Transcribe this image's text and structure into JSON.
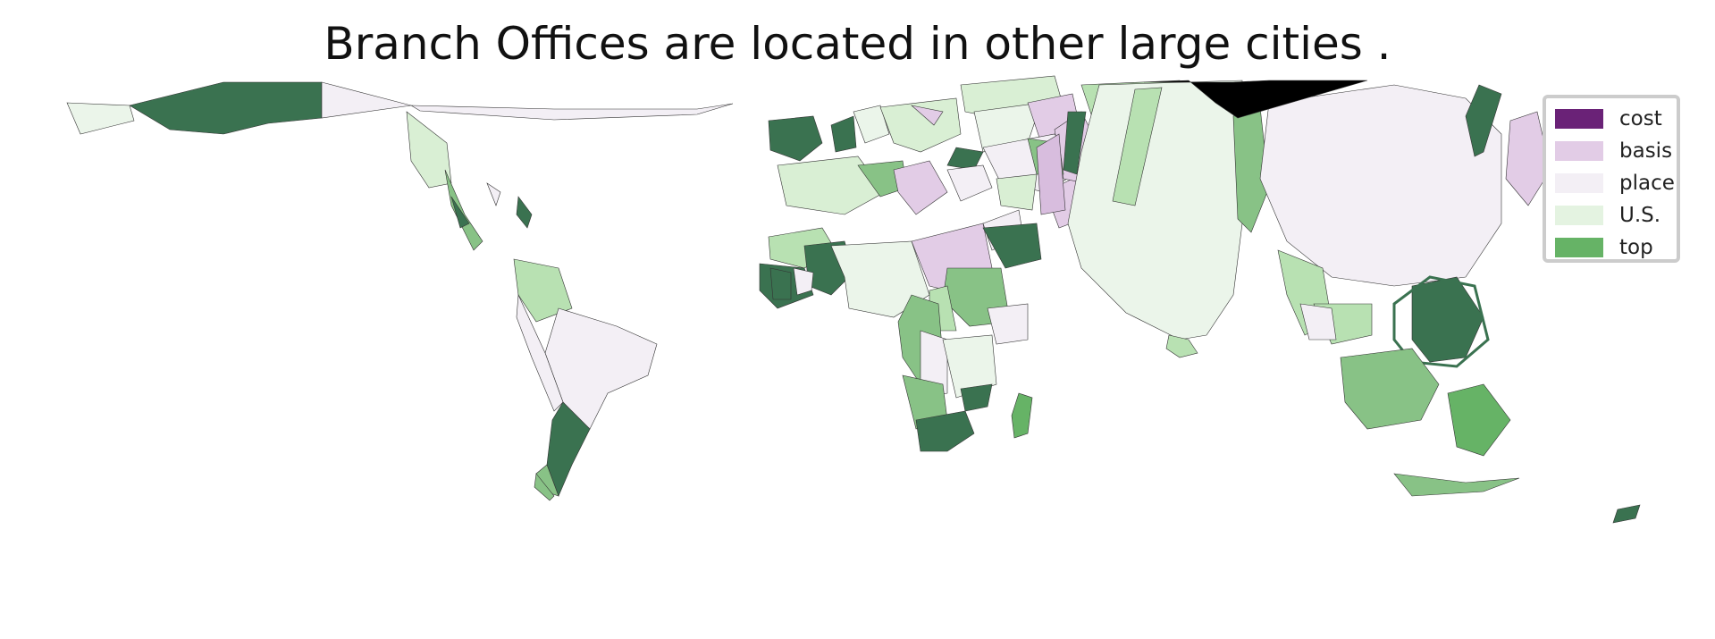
{
  "title": "Branch Offices are located in other large cities .",
  "legend": {
    "entries": [
      {
        "label": "cost",
        "color": "#6a2277"
      },
      {
        "label": "basis",
        "color": "#e2cce6"
      },
      {
        "label": "place",
        "color": "#f3eff5"
      },
      {
        "label": "U.S.",
        "color": "#e4f3e1"
      },
      {
        "label": "top",
        "color": "#66b366"
      }
    ],
    "placement": "top-right"
  },
  "colors": {
    "darkest_green": "#3a7250",
    "mid_green": "#88c286",
    "light_green": "#b8e1b2",
    "pale_green": "#ebf5ea",
    "lavender": "#d8bdde",
    "black": "#000000"
  }
}
